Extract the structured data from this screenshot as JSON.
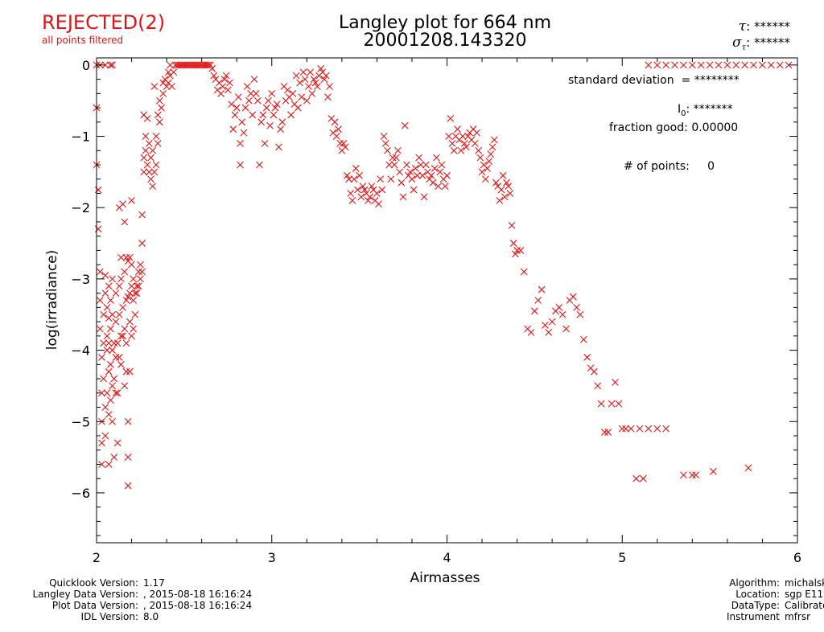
{
  "header": {
    "status": "REJECTED(2)",
    "status_sub": "all points filtered",
    "title_line1": "Langley plot for 664 nm",
    "title_line2": "20001208.143320",
    "tau_symbol": "τ",
    "tau_value": "******",
    "sigma_symbol": "σ",
    "sigma_sub": "τ",
    "sigma_value": "******",
    "status_color": "#e01414"
  },
  "stats": {
    "std_label": "standard deviation",
    "std_value": "= ********",
    "i0_label": "I",
    "i0_sub": "0",
    "i0_value": ": *******",
    "fraction_label": "fraction good:",
    "fraction_value": "0.00000",
    "npoints_label": "# of points:",
    "npoints_value": "0"
  },
  "chart_data": {
    "type": "scatter",
    "title": "Langley plot for 664 nm",
    "subtitle": "20001208.143320",
    "xlabel": "Airmasses",
    "ylabel": "log(irradiance)",
    "xlim": [
      2,
      6
    ],
    "ylim": [
      -6.7,
      0.1
    ],
    "x_ticks": [
      "2",
      "3",
      "4",
      "5",
      "6"
    ],
    "y_ticks": [
      "0",
      "−1",
      "−2",
      "−3",
      "−4",
      "−5",
      "−6"
    ],
    "marker": "x",
    "marker_color": "#e01414",
    "grid": false,
    "points": [
      [
        2.0,
        -0.6
      ],
      [
        2.0,
        -1.4
      ],
      [
        2.01,
        -1.75
      ],
      [
        2.01,
        -2.3
      ],
      [
        2.02,
        -2.9
      ],
      [
        2.02,
        -3.3
      ],
      [
        2.02,
        -3.7
      ],
      [
        2.03,
        -4.1
      ],
      [
        2.03,
        -4.6
      ],
      [
        2.03,
        -5.0
      ],
      [
        2.03,
        -5.3
      ],
      [
        2.03,
        -5.6
      ],
      [
        2.04,
        -3.5
      ],
      [
        2.04,
        -3.9
      ],
      [
        2.04,
        -4.4
      ],
      [
        2.05,
        -2.95
      ],
      [
        2.05,
        -3.2
      ],
      [
        2.05,
        -4.8
      ],
      [
        2.05,
        -5.2
      ],
      [
        2.06,
        -3.4
      ],
      [
        2.06,
        -3.8
      ],
      [
        2.06,
        -4.0
      ],
      [
        2.06,
        -4.6
      ],
      [
        2.07,
        -3.1
      ],
      [
        2.07,
        -3.55
      ],
      [
        2.07,
        -3.9
      ],
      [
        2.07,
        -4.3
      ],
      [
        2.07,
        -4.9
      ],
      [
        2.07,
        -5.6
      ],
      [
        2.08,
        -3.3
      ],
      [
        2.08,
        -3.7
      ],
      [
        2.08,
        -4.2
      ],
      [
        2.08,
        -4.7
      ],
      [
        2.09,
        -3.0
      ],
      [
        2.09,
        -3.5
      ],
      [
        2.09,
        -4.0
      ],
      [
        2.09,
        -4.5
      ],
      [
        2.09,
        -5.0
      ],
      [
        2.1,
        -3.9
      ],
      [
        2.1,
        -4.4
      ],
      [
        2.1,
        -5.5
      ],
      [
        2.11,
        -3.2
      ],
      [
        2.11,
        -3.6
      ],
      [
        2.11,
        -4.1
      ],
      [
        2.11,
        -4.6
      ],
      [
        2.12,
        -3.9
      ],
      [
        2.12,
        -4.6
      ],
      [
        2.12,
        -5.3
      ],
      [
        2.13,
        -2.0
      ],
      [
        2.13,
        -3.1
      ],
      [
        2.13,
        -3.5
      ],
      [
        2.13,
        -4.1
      ],
      [
        2.14,
        -2.7
      ],
      [
        2.14,
        -3.0
      ],
      [
        2.14,
        -3.8
      ],
      [
        2.14,
        -4.2
      ],
      [
        2.15,
        -1.95
      ],
      [
        2.15,
        -3.4
      ],
      [
        2.15,
        -3.8
      ],
      [
        2.16,
        -2.2
      ],
      [
        2.16,
        -2.9
      ],
      [
        2.16,
        -3.7
      ],
      [
        2.16,
        -4.5
      ],
      [
        2.17,
        -2.7
      ],
      [
        2.17,
        -3.3
      ],
      [
        2.17,
        -3.9
      ],
      [
        2.17,
        -4.3
      ],
      [
        2.18,
        -2.75
      ],
      [
        2.18,
        -3.25
      ],
      [
        2.18,
        -5.0
      ],
      [
        2.18,
        -5.5
      ],
      [
        2.18,
        -5.9
      ],
      [
        2.19,
        -2.7
      ],
      [
        2.19,
        -3.2
      ],
      [
        2.19,
        -3.6
      ],
      [
        2.19,
        -4.3
      ],
      [
        2.2,
        -1.9
      ],
      [
        2.2,
        -2.8
      ],
      [
        2.2,
        -3.1
      ],
      [
        2.2,
        -3.8
      ],
      [
        2.21,
        -3.0
      ],
      [
        2.21,
        -3.3
      ],
      [
        2.21,
        -3.7
      ],
      [
        2.22,
        -3.2
      ],
      [
        2.22,
        -3.5
      ],
      [
        2.23,
        -3.1
      ],
      [
        2.23,
        -3.2
      ],
      [
        2.24,
        -2.9
      ],
      [
        2.24,
        -3.1
      ],
      [
        2.25,
        -2.8
      ],
      [
        2.25,
        -3.0
      ],
      [
        2.26,
        -2.5
      ],
      [
        2.26,
        -2.9
      ],
      [
        2.26,
        -2.1
      ],
      [
        2.27,
        -0.7
      ],
      [
        2.27,
        -1.3
      ],
      [
        2.27,
        -1.5
      ],
      [
        2.28,
        -1.0
      ],
      [
        2.28,
        -1.2
      ],
      [
        2.29,
        -1.4
      ],
      [
        2.29,
        -0.75
      ],
      [
        2.3,
        -1.1
      ],
      [
        2.3,
        -1.5
      ],
      [
        2.31,
        -1.3
      ],
      [
        2.31,
        -1.6
      ],
      [
        2.32,
        -1.7
      ],
      [
        2.32,
        -1.2
      ],
      [
        2.33,
        -1.5
      ],
      [
        2.33,
        -0.3
      ],
      [
        2.34,
        -1.0
      ],
      [
        2.34,
        -1.4
      ],
      [
        2.35,
        -0.7
      ],
      [
        2.35,
        -1.1
      ],
      [
        2.36,
        -0.5
      ],
      [
        2.36,
        -0.8
      ],
      [
        2.37,
        -0.6
      ],
      [
        2.38,
        -0.25
      ],
      [
        2.38,
        -0.4
      ],
      [
        2.39,
        -0.2
      ],
      [
        2.4,
        -0.3
      ],
      [
        2.41,
        -0.1
      ],
      [
        2.41,
        -0.25
      ],
      [
        2.42,
        0.0
      ],
      [
        2.42,
        -0.15
      ],
      [
        2.43,
        -0.3
      ],
      [
        2.44,
        -0.1
      ],
      [
        2.45,
        0.0
      ],
      [
        2.46,
        0.0
      ],
      [
        2.47,
        0.0
      ],
      [
        2.48,
        0.0
      ],
      [
        2.49,
        0.0
      ],
      [
        2.5,
        0.0
      ],
      [
        2.51,
        0.0
      ],
      [
        2.52,
        0.0
      ],
      [
        2.53,
        0.0
      ],
      [
        2.54,
        0.0
      ],
      [
        2.55,
        0.0
      ],
      [
        2.56,
        0.0
      ],
      [
        2.57,
        0.0
      ],
      [
        2.58,
        0.0
      ],
      [
        2.59,
        0.0
      ],
      [
        2.6,
        0.0
      ],
      [
        2.61,
        0.0
      ],
      [
        2.62,
        0.0
      ],
      [
        2.63,
        0.0
      ],
      [
        2.64,
        0.0
      ],
      [
        2.65,
        0.0
      ],
      [
        2.66,
        -0.05
      ],
      [
        2.67,
        -0.15
      ],
      [
        2.68,
        -0.2
      ],
      [
        2.69,
        -0.35
      ],
      [
        2.7,
        -0.25
      ],
      [
        2.71,
        -0.4
      ],
      [
        2.72,
        -0.3
      ],
      [
        2.73,
        -0.2
      ],
      [
        2.74,
        -0.15
      ],
      [
        2.75,
        -0.35
      ],
      [
        2.76,
        -0.25
      ],
      [
        2.77,
        -0.55
      ],
      [
        2.78,
        -0.9
      ],
      [
        2.79,
        -0.7
      ],
      [
        2.8,
        -0.6
      ],
      [
        2.81,
        -0.45
      ],
      [
        2.82,
        -1.1
      ],
      [
        2.82,
        -1.4
      ],
      [
        2.83,
        -0.8
      ],
      [
        2.84,
        -0.95
      ],
      [
        2.85,
        -0.6
      ],
      [
        2.86,
        -0.3
      ],
      [
        2.87,
        -0.5
      ],
      [
        2.88,
        -0.4
      ],
      [
        2.89,
        -0.7
      ],
      [
        2.9,
        -0.2
      ],
      [
        2.91,
        -0.4
      ],
      [
        2.92,
        -0.5
      ],
      [
        2.93,
        -1.4
      ],
      [
        2.94,
        -0.8
      ],
      [
        2.95,
        -0.7
      ],
      [
        2.96,
        -1.1
      ],
      [
        2.97,
        -0.6
      ],
      [
        2.98,
        -0.5
      ],
      [
        2.99,
        -0.85
      ],
      [
        3.0,
        -0.4
      ],
      [
        3.01,
        -0.7
      ],
      [
        3.02,
        -0.6
      ],
      [
        3.03,
        -0.55
      ],
      [
        3.04,
        -1.15
      ],
      [
        3.05,
        -0.9
      ],
      [
        3.06,
        -0.8
      ],
      [
        3.07,
        -0.3
      ],
      [
        3.08,
        -0.5
      ],
      [
        3.09,
        -0.35
      ],
      [
        3.1,
        -0.45
      ],
      [
        3.11,
        -0.7
      ],
      [
        3.12,
        -0.4
      ],
      [
        3.13,
        -0.55
      ],
      [
        3.14,
        -0.15
      ],
      [
        3.15,
        -0.6
      ],
      [
        3.16,
        -0.25
      ],
      [
        3.17,
        -0.45
      ],
      [
        3.18,
        -0.1
      ],
      [
        3.19,
        -0.2
      ],
      [
        3.2,
        -0.5
      ],
      [
        3.21,
        -0.3
      ],
      [
        3.22,
        -0.1
      ],
      [
        3.23,
        -0.4
      ],
      [
        3.24,
        -0.2
      ],
      [
        3.25,
        -0.25
      ],
      [
        3.26,
        -0.3
      ],
      [
        3.27,
        -0.15
      ],
      [
        3.28,
        -0.05
      ],
      [
        3.29,
        -0.1
      ],
      [
        3.3,
        -0.2
      ],
      [
        3.31,
        -0.15
      ],
      [
        3.32,
        -0.45
      ],
      [
        3.33,
        -0.3
      ],
      [
        3.34,
        -0.75
      ],
      [
        3.35,
        -0.95
      ],
      [
        3.36,
        -0.8
      ],
      [
        3.37,
        -1.0
      ],
      [
        3.38,
        -0.9
      ],
      [
        3.39,
        -1.1
      ],
      [
        3.4,
        -1.2
      ],
      [
        3.41,
        -1.1
      ],
      [
        3.42,
        -1.15
      ],
      [
        3.43,
        -1.55
      ],
      [
        3.44,
        -1.6
      ],
      [
        3.45,
        -1.8
      ],
      [
        3.46,
        -1.9
      ],
      [
        3.47,
        -1.6
      ],
      [
        3.48,
        -1.45
      ],
      [
        3.49,
        -1.75
      ],
      [
        3.5,
        -1.55
      ],
      [
        3.51,
        -1.85
      ],
      [
        3.52,
        -1.7
      ],
      [
        3.53,
        -1.75
      ],
      [
        3.54,
        -1.8
      ],
      [
        3.55,
        -1.9
      ],
      [
        3.56,
        -1.85
      ],
      [
        3.57,
        -1.7
      ],
      [
        3.58,
        -1.75
      ],
      [
        3.59,
        -1.9
      ],
      [
        3.6,
        -1.8
      ],
      [
        3.61,
        -1.95
      ],
      [
        3.62,
        -1.6
      ],
      [
        3.63,
        -1.75
      ],
      [
        3.64,
        -1.0
      ],
      [
        3.65,
        -1.1
      ],
      [
        3.66,
        -1.2
      ],
      [
        3.67,
        -1.4
      ],
      [
        3.68,
        -1.6
      ],
      [
        3.69,
        -1.3
      ],
      [
        3.7,
        -1.4
      ],
      [
        3.71,
        -1.3
      ],
      [
        3.72,
        -1.2
      ],
      [
        3.73,
        -1.5
      ],
      [
        3.74,
        -1.65
      ],
      [
        3.75,
        -1.85
      ],
      [
        3.76,
        -0.85
      ],
      [
        3.77,
        -1.4
      ],
      [
        3.78,
        -1.55
      ],
      [
        3.79,
        -1.5
      ],
      [
        3.8,
        -1.6
      ],
      [
        3.81,
        -1.75
      ],
      [
        3.82,
        -1.45
      ],
      [
        3.83,
        -1.55
      ],
      [
        3.84,
        -1.3
      ],
      [
        3.85,
        -1.4
      ],
      [
        3.86,
        -1.55
      ],
      [
        3.87,
        -1.85
      ],
      [
        3.88,
        -1.4
      ],
      [
        3.89,
        -1.5
      ],
      [
        3.9,
        -1.6
      ],
      [
        3.91,
        -1.55
      ],
      [
        3.92,
        -1.65
      ],
      [
        3.93,
        -1.45
      ],
      [
        3.94,
        -1.3
      ],
      [
        3.95,
        -1.7
      ],
      [
        3.96,
        -1.5
      ],
      [
        3.97,
        -1.4
      ],
      [
        3.98,
        -1.6
      ],
      [
        3.99,
        -1.7
      ],
      [
        4.0,
        -1.55
      ],
      [
        4.01,
        -1.0
      ],
      [
        4.02,
        -0.75
      ],
      [
        4.03,
        -1.1
      ],
      [
        4.04,
        -1.2
      ],
      [
        4.05,
        -1.0
      ],
      [
        4.06,
        -0.9
      ],
      [
        4.07,
        -1.05
      ],
      [
        4.08,
        -1.2
      ],
      [
        4.09,
        -1.0
      ],
      [
        4.1,
        -1.1
      ],
      [
        4.11,
        -1.15
      ],
      [
        4.12,
        -1.0
      ],
      [
        4.13,
        -0.95
      ],
      [
        4.14,
        -1.05
      ],
      [
        4.15,
        -0.9
      ],
      [
        4.16,
        -1.1
      ],
      [
        4.17,
        -0.95
      ],
      [
        4.18,
        -1.2
      ],
      [
        4.19,
        -1.3
      ],
      [
        4.2,
        -1.5
      ],
      [
        4.21,
        -1.4
      ],
      [
        4.22,
        -1.6
      ],
      [
        4.23,
        -1.45
      ],
      [
        4.24,
        -1.35
      ],
      [
        4.25,
        -1.25
      ],
      [
        4.26,
        -1.15
      ],
      [
        4.27,
        -1.05
      ],
      [
        4.28,
        -1.65
      ],
      [
        4.29,
        -1.7
      ],
      [
        4.3,
        -1.9
      ],
      [
        4.31,
        -1.75
      ],
      [
        4.32,
        -1.55
      ],
      [
        4.33,
        -1.85
      ],
      [
        4.34,
        -1.65
      ],
      [
        4.35,
        -1.7
      ],
      [
        4.36,
        -1.8
      ],
      [
        4.37,
        -2.25
      ],
      [
        4.38,
        -2.5
      ],
      [
        4.39,
        -2.65
      ],
      [
        4.4,
        -2.6
      ],
      [
        4.42,
        -2.6
      ],
      [
        4.44,
        -2.9
      ],
      [
        4.46,
        -3.7
      ],
      [
        4.48,
        -3.75
      ],
      [
        4.5,
        -3.45
      ],
      [
        4.52,
        -3.3
      ],
      [
        4.54,
        -3.15
      ],
      [
        4.56,
        -3.65
      ],
      [
        4.58,
        -3.75
      ],
      [
        4.6,
        -3.6
      ],
      [
        4.62,
        -3.45
      ],
      [
        4.64,
        -3.4
      ],
      [
        4.66,
        -3.5
      ],
      [
        4.68,
        -3.7
      ],
      [
        4.7,
        -3.3
      ],
      [
        4.72,
        -3.25
      ],
      [
        4.74,
        -3.4
      ],
      [
        4.76,
        -3.5
      ],
      [
        4.78,
        -3.85
      ],
      [
        4.8,
        -4.1
      ],
      [
        4.82,
        -4.25
      ],
      [
        4.84,
        -4.3
      ],
      [
        4.86,
        -4.5
      ],
      [
        4.88,
        -4.75
      ],
      [
        4.9,
        -5.15
      ],
      [
        4.92,
        -5.15
      ],
      [
        4.94,
        -4.75
      ],
      [
        4.96,
        -4.45
      ],
      [
        4.98,
        -4.75
      ],
      [
        5.0,
        -5.1
      ],
      [
        5.02,
        -5.1
      ],
      [
        5.05,
        -5.1
      ],
      [
        5.08,
        -5.8
      ],
      [
        5.1,
        -5.1
      ],
      [
        5.12,
        -5.8
      ],
      [
        5.15,
        -5.1
      ],
      [
        5.2,
        -5.1
      ],
      [
        5.25,
        -5.1
      ],
      [
        5.35,
        -5.75
      ],
      [
        5.4,
        -5.75
      ],
      [
        5.42,
        -5.75
      ],
      [
        5.52,
        -5.7
      ],
      [
        5.72,
        -5.65
      ],
      [
        5.15,
        0.0
      ],
      [
        5.2,
        0.0
      ],
      [
        5.25,
        0.0
      ],
      [
        5.3,
        0.0
      ],
      [
        5.35,
        0.0
      ],
      [
        5.4,
        0.0
      ],
      [
        5.45,
        0.0
      ],
      [
        5.5,
        0.0
      ],
      [
        5.55,
        0.0
      ],
      [
        5.6,
        0.0
      ],
      [
        5.65,
        0.0
      ],
      [
        5.7,
        0.0
      ],
      [
        5.75,
        0.0
      ],
      [
        5.8,
        0.0
      ],
      [
        5.85,
        0.0
      ],
      [
        5.9,
        0.0
      ],
      [
        5.95,
        0.0
      ],
      [
        2.0,
        0.0
      ],
      [
        2.02,
        0.0
      ],
      [
        2.05,
        0.0
      ],
      [
        2.08,
        0.0
      ],
      [
        2.09,
        0.0
      ]
    ]
  },
  "footer": {
    "left": [
      {
        "label": "Quicklook Version:",
        "value": "1.17"
      },
      {
        "label": "Langley Data Version:",
        "value": ", 2015-08-18 16:16:24"
      },
      {
        "label": "Plot Data Version:",
        "value": ", 2015-08-18 16:16:24"
      },
      {
        "label": "IDL Version:",
        "value": "8.0"
      }
    ],
    "right": [
      {
        "label": "Algorithm:",
        "value": "michalsky"
      },
      {
        "label": "Location:",
        "value": "sgp E11"
      },
      {
        "label": "DataType:",
        "value": "Calibrated"
      },
      {
        "label": "Instrument",
        "value": "mfrsr"
      }
    ]
  }
}
